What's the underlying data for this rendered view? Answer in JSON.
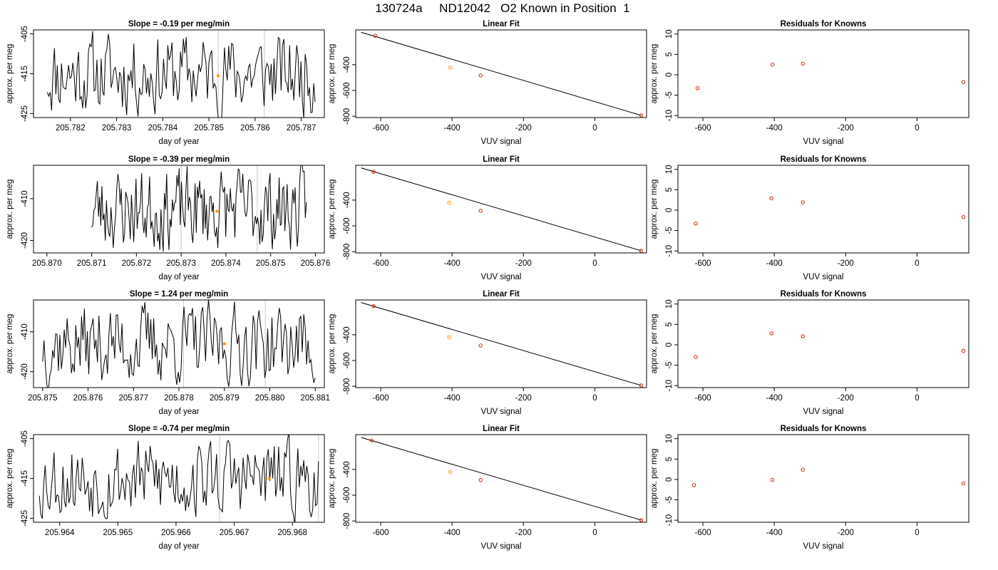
{
  "page_title": "130724a     ND12042   O2 Known in Position  1",
  "colors": {
    "trace": "#000000",
    "point": "#cc2200",
    "highlight": "#ff9900",
    "vline": "#c8c8c8",
    "fitline": "#000000"
  },
  "chart_data": [
    {
      "type": "line",
      "title": "Slope =  -0.19  per meg/min",
      "xlabel": "day of year",
      "ylabel": "approx. per meg",
      "xlim": [
        205.7812,
        205.7875
      ],
      "ylim": [
        -426,
        -404
      ],
      "xticks": [
        "205.782",
        "205.783",
        "205.784",
        "205.785",
        "205.786",
        "205.787"
      ],
      "yticks": [
        "-405",
        "-415",
        "-425"
      ],
      "x_start": 205.7815,
      "x_end": 205.7873,
      "seed": 11,
      "highlight_point": {
        "x": 205.7852,
        "y": -415.5
      },
      "vlines": [
        205.7852,
        205.7862
      ]
    },
    {
      "type": "scatter",
      "title": "Linear Fit",
      "xlabel": "VUV signal",
      "ylabel": "approx. per meg",
      "xlim": [
        -670,
        145
      ],
      "ylim": [
        -810,
        -130
      ],
      "xticks": [
        "-600",
        "-400",
        "-200",
        "0"
      ],
      "yticks": [
        "-400",
        "-600",
        "-800"
      ],
      "points": [
        [
          -615,
          -175
        ],
        [
          -405,
          -422
        ],
        [
          -320,
          -483
        ],
        [
          130,
          -793
        ]
      ],
      "highlight_index": 1,
      "fit_line": [
        [
          -655,
          -148
        ],
        [
          130,
          -793
        ]
      ]
    },
    {
      "type": "scatter",
      "title": "Residuals for Knowns",
      "xlabel": "VUV signal",
      "ylabel": "approx. per meg",
      "xlim": [
        -670,
        145
      ],
      "ylim": [
        -10.5,
        11
      ],
      "xticks": [
        "-600",
        "-400",
        "-200",
        "0"
      ],
      "yticks": [
        "10",
        "5",
        "0",
        "-5",
        "-10"
      ],
      "points": [
        [
          -615,
          -3.3
        ],
        [
          -405,
          2.5
        ],
        [
          -320,
          2.7
        ],
        [
          130,
          -1.8
        ]
      ]
    },
    {
      "type": "line",
      "title": "Slope =  -0.39  per meg/min",
      "xlabel": "day of year",
      "ylabel": "approx. per meg",
      "xlim": [
        205.8697,
        205.8762
      ],
      "ylim": [
        -423,
        -402
      ],
      "xticks": [
        "205.870",
        "205.871",
        "205.872",
        "205.873",
        "205.874",
        "205.875",
        "205.876"
      ],
      "yticks": [
        "-410",
        "-420"
      ],
      "x_start": 205.871,
      "x_end": 205.8758,
      "seed": 23,
      "highlight_point": {
        "x": 205.8738,
        "y": -413
      },
      "vlines": [
        205.873,
        205.8747
      ]
    },
    {
      "type": "scatter",
      "title": "Linear Fit",
      "xlabel": "VUV signal",
      "ylabel": "approx. per meg",
      "xlim": [
        -670,
        145
      ],
      "ylim": [
        -810,
        -130
      ],
      "xticks": [
        "-600",
        "-400",
        "-200",
        "0"
      ],
      "yticks": [
        "-400",
        "-600",
        "-800"
      ],
      "points": [
        [
          -620,
          -180
        ],
        [
          -408,
          -420
        ],
        [
          -320,
          -483
        ],
        [
          130,
          -793
        ]
      ],
      "highlight_index": 1,
      "fit_line": [
        [
          -655,
          -150
        ],
        [
          130,
          -793
        ]
      ]
    },
    {
      "type": "scatter",
      "title": "Residuals for Knowns",
      "xlabel": "VUV signal",
      "ylabel": "approx. per meg",
      "xlim": [
        -670,
        145
      ],
      "ylim": [
        -10.5,
        11
      ],
      "xticks": [
        "-600",
        "-400",
        "-200",
        "0"
      ],
      "yticks": [
        "10",
        "5",
        "0",
        "-5",
        "-10"
      ],
      "points": [
        [
          -620,
          -3.3
        ],
        [
          -408,
          2.9
        ],
        [
          -320,
          1.9
        ],
        [
          130,
          -1.7
        ]
      ]
    },
    {
      "type": "line",
      "title": "Slope =  1.24  per meg/min",
      "xlabel": "day of year",
      "ylabel": "approx. per meg",
      "xlim": [
        205.8748,
        205.8812
      ],
      "ylim": [
        -424,
        -402
      ],
      "xticks": [
        "205.875",
        "205.876",
        "205.877",
        "205.878",
        "205.879",
        "205.880",
        "205.881"
      ],
      "yticks": [
        "-410",
        "-420"
      ],
      "x_start": 205.875,
      "x_end": 205.881,
      "seed": 37,
      "highlight_point": {
        "x": 205.879,
        "y": -413
      },
      "vlines": [
        205.8781,
        205.8799
      ]
    },
    {
      "type": "scatter",
      "title": "Linear Fit",
      "xlabel": "VUV signal",
      "ylabel": "approx. per meg",
      "xlim": [
        -670,
        145
      ],
      "ylim": [
        -810,
        -130
      ],
      "xticks": [
        "-600",
        "-400",
        "-200",
        "0"
      ],
      "yticks": [
        "-400",
        "-600",
        "-800"
      ],
      "points": [
        [
          -620,
          -178
        ],
        [
          -408,
          -420
        ],
        [
          -320,
          -483
        ],
        [
          130,
          -793
        ]
      ],
      "highlight_index": 1,
      "fit_line": [
        [
          -655,
          -150
        ],
        [
          130,
          -793
        ]
      ]
    },
    {
      "type": "scatter",
      "title": "Residuals for Knowns",
      "xlabel": "VUV signal",
      "ylabel": "approx. per meg",
      "xlim": [
        -670,
        145
      ],
      "ylim": [
        -10.5,
        11
      ],
      "xticks": [
        "-600",
        "-400",
        "-200",
        "0"
      ],
      "yticks": [
        "10",
        "5",
        "0",
        "-5",
        "-10"
      ],
      "points": [
        [
          -620,
          -3.0
        ],
        [
          -408,
          2.8
        ],
        [
          -320,
          2.1
        ],
        [
          130,
          -1.5
        ]
      ]
    },
    {
      "type": "line",
      "title": "Slope =  -0.74  per meg/min",
      "xlabel": "day of year",
      "ylabel": "approx. per meg",
      "xlim": [
        205.96355,
        205.96855
      ],
      "ylim": [
        -426,
        -404
      ],
      "xticks": [
        "205.964",
        "205.965",
        "205.966",
        "205.967",
        "205.968"
      ],
      "yticks": [
        "-405",
        "-415",
        "-425"
      ],
      "x_start": 205.96365,
      "x_end": 205.96845,
      "seed": 53,
      "highlight_point": {
        "x": 205.9676,
        "y": -415
      },
      "vlines": [
        205.96675,
        205.96845
      ]
    },
    {
      "type": "scatter",
      "title": "Linear Fit",
      "xlabel": "VUV signal",
      "ylabel": "approx. per meg",
      "xlim": [
        -670,
        145
      ],
      "ylim": [
        -810,
        -130
      ],
      "xticks": [
        "-600",
        "-400",
        "-200",
        "0"
      ],
      "yticks": [
        "-400",
        "-600",
        "-800"
      ],
      "points": [
        [
          -625,
          -175
        ],
        [
          -405,
          -420
        ],
        [
          -320,
          -482
        ],
        [
          130,
          -793
        ]
      ],
      "highlight_index": 1,
      "fit_line": [
        [
          -655,
          -152
        ],
        [
          130,
          -793
        ]
      ]
    },
    {
      "type": "scatter",
      "title": "Residuals for Knowns",
      "xlabel": "VUV signal",
      "ylabel": "approx. per meg",
      "xlim": [
        -670,
        145
      ],
      "ylim": [
        -10.5,
        11
      ],
      "xticks": [
        "-600",
        "-400",
        "-200",
        "0"
      ],
      "yticks": [
        "10",
        "5",
        "0",
        "-5",
        "-10"
      ],
      "points": [
        [
          -625,
          -1.4
        ],
        [
          -405,
          -0.1
        ],
        [
          -320,
          2.4
        ],
        [
          130,
          -1.0
        ]
      ]
    }
  ]
}
